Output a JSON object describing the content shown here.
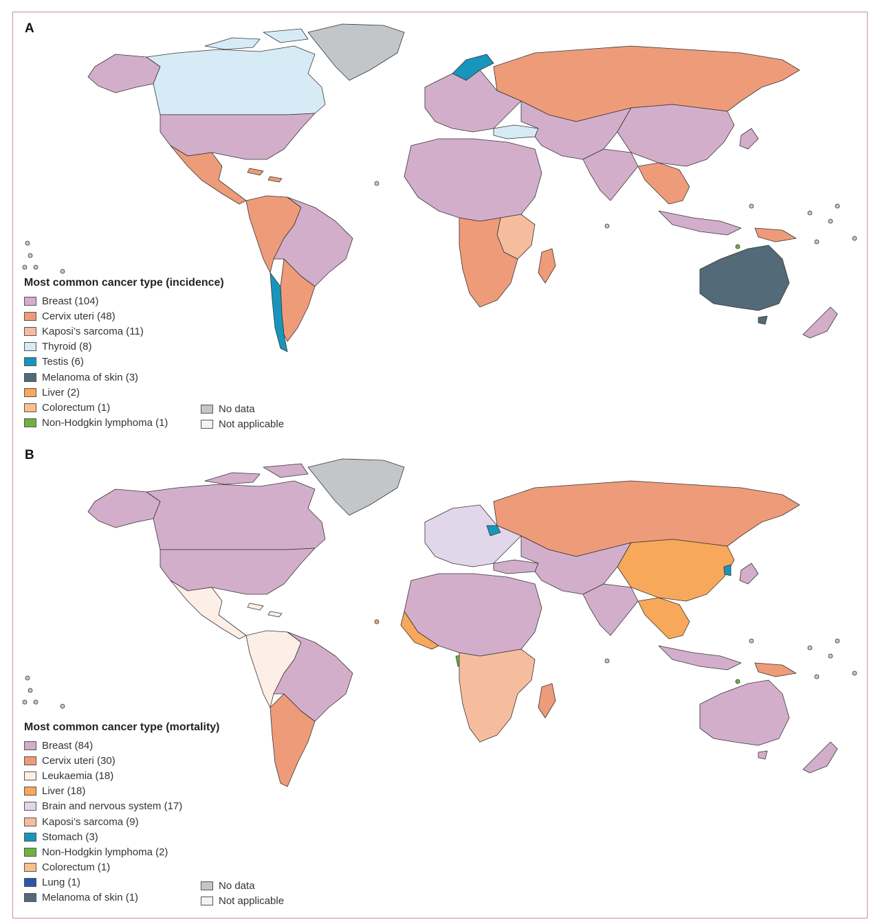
{
  "figure": {
    "panels": [
      {
        "letter": "A",
        "legend_title": "Most common cancer type (incidence)",
        "legend_items": [
          {
            "label": "Breast (104)",
            "color": "#d3aecb"
          },
          {
            "label": "Cervix uteri (48)",
            "color": "#ee9b7a"
          },
          {
            "label": "Kaposi’s sarcoma (11)",
            "color": "#f6bc9e"
          },
          {
            "label": "Thyroid (8)",
            "color": "#d6ebf5"
          },
          {
            "label": "Testis (6)",
            "color": "#1796bd"
          },
          {
            "label": "Melanoma of skin (3)",
            "color": "#536a78"
          },
          {
            "label": "Liver (2)",
            "color": "#f8a85a"
          },
          {
            "label": "Colorectum (1)",
            "color": "#f9c08a"
          },
          {
            "label": "Non-Hodgkin lymphoma (1)",
            "color": "#6db33f"
          }
        ],
        "extra_items": [
          {
            "label": "No data",
            "color": "#c3c6c9"
          },
          {
            "label": "Not applicable",
            "color": "#f2f2f2"
          }
        ]
      },
      {
        "letter": "B",
        "legend_title": "Most common cancer type (mortality)",
        "legend_items": [
          {
            "label": "Breast (84)",
            "color": "#d3aecb"
          },
          {
            "label": "Cervix uteri (30)",
            "color": "#ee9b7a"
          },
          {
            "label": "Leukaemia (18)",
            "color": "#fdeee6"
          },
          {
            "label": "Liver (18)",
            "color": "#f8a85a"
          },
          {
            "label": "Brain and nervous system (17)",
            "color": "#e2d6ea"
          },
          {
            "label": "Kaposi’s sarcoma (9)",
            "color": "#f6bc9e"
          },
          {
            "label": "Stomach (3)",
            "color": "#1796bd"
          },
          {
            "label": "Non-Hodgkin lymphoma (2)",
            "color": "#6db33f"
          },
          {
            "label": "Colorectum (1)",
            "color": "#f9c08a"
          },
          {
            "label": "Lung (1)",
            "color": "#2b57a8"
          },
          {
            "label": "Melanoma of skin (1)",
            "color": "#536a78"
          }
        ],
        "extra_items": [
          {
            "label": "No data",
            "color": "#c3c6c9"
          },
          {
            "label": "Not applicable",
            "color": "#f2f2f2"
          }
        ]
      }
    ],
    "map_region_colors": {
      "panel_a": {
        "canada": "#d6ebf5",
        "greenland": "#c3c6c9",
        "usa_alaska": "#d3aecb",
        "mexico_central_america": "#ee9b7a",
        "south_america_west": "#ee9b7a",
        "brazil": "#d3aecb",
        "chile": "#1796bd",
        "argentina": "#ee9b7a",
        "russia": "#ee9b7a",
        "europe": "#d3aecb",
        "africa": "#d3aecb",
        "southern_africa": "#ee9b7a",
        "east_africa": "#f6bc9e",
        "asia": "#d3aecb",
        "china": "#d3aecb",
        "turkey": "#d6ebf5",
        "southeast_asia": "#ee9b7a",
        "australia": "#536a78",
        "new_zealand": "#d3aecb",
        "madagascar": "#ee9b7a"
      },
      "panel_b": {
        "canada": "#d3aecb",
        "greenland": "#c3c6c9",
        "usa_alaska": "#d3aecb",
        "mexico_central_america": "#fdeee6",
        "south_america_west": "#fdeee6",
        "brazil": "#d3aecb",
        "argentina": "#ee9b7a",
        "russia": "#ee9b7a",
        "europe": "#e2d6ea",
        "belarus": "#1796bd",
        "africa": "#d3aecb",
        "west_africa": "#f8a85a",
        "southern_africa": "#f6bc9e",
        "china": "#f8a85a",
        "asia": "#d3aecb",
        "korea": "#1796bd",
        "southeast_asia": "#f8a85a",
        "australia": "#d3aecb",
        "new_zealand": "#d3aecb",
        "madagascar": "#ee9b7a",
        "gabon": "#6db33f"
      }
    }
  }
}
